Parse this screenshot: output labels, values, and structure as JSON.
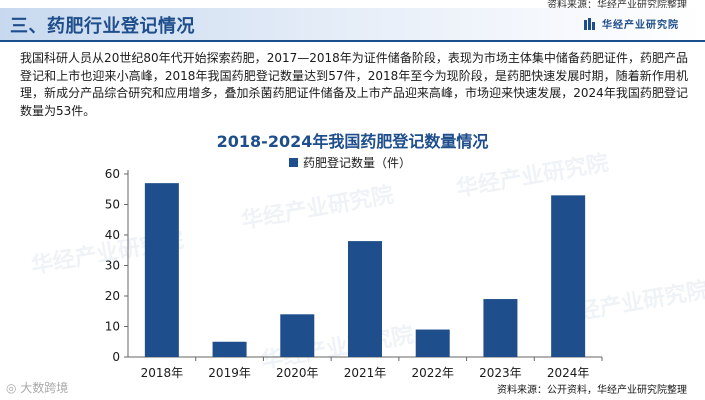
{
  "top_source": "资料来源：华经产业研究院整理",
  "header": {
    "title": "三、药肥行业登记情况",
    "brand": "华经产业研究院"
  },
  "intro": "我国科研人员从20世纪80年代开始探索药肥，2017—2018年为证件储备阶段，表现为市场主体集中储备药肥证件，药肥产品登记和上市也迎来小高峰，2018年我国药肥登记数量达到57件，2018年至今为现阶段，是药肥快速发展时期，随着新作用机理，新成分产品综合研究和应用增多，叠加杀菌药肥证件储备及上市产品迎来高峰，市场迎来快速发展，2024年我国药肥登记数量为53件。",
  "watermark": "华经产业研究院",
  "bottom_left": "大数跨境",
  "chart_data": {
    "type": "bar",
    "title": "2018-2024年我国药肥登记数量情况",
    "categories": [
      "2018年",
      "2019年",
      "2020年",
      "2021年",
      "2022年",
      "2023年",
      "2024年"
    ],
    "series": [
      {
        "name": "药肥登记数量（件）",
        "values": [
          57,
          5,
          14,
          38,
          9,
          19,
          53
        ]
      }
    ],
    "ylim": [
      0,
      60
    ],
    "yticks": [
      0,
      10,
      20,
      30,
      40,
      50,
      60
    ],
    "grid": false,
    "legend": "top-center",
    "bar_color": "#1f4e8c"
  },
  "bottom_source": "资料来源：公开资料，华经产业研究院整理"
}
